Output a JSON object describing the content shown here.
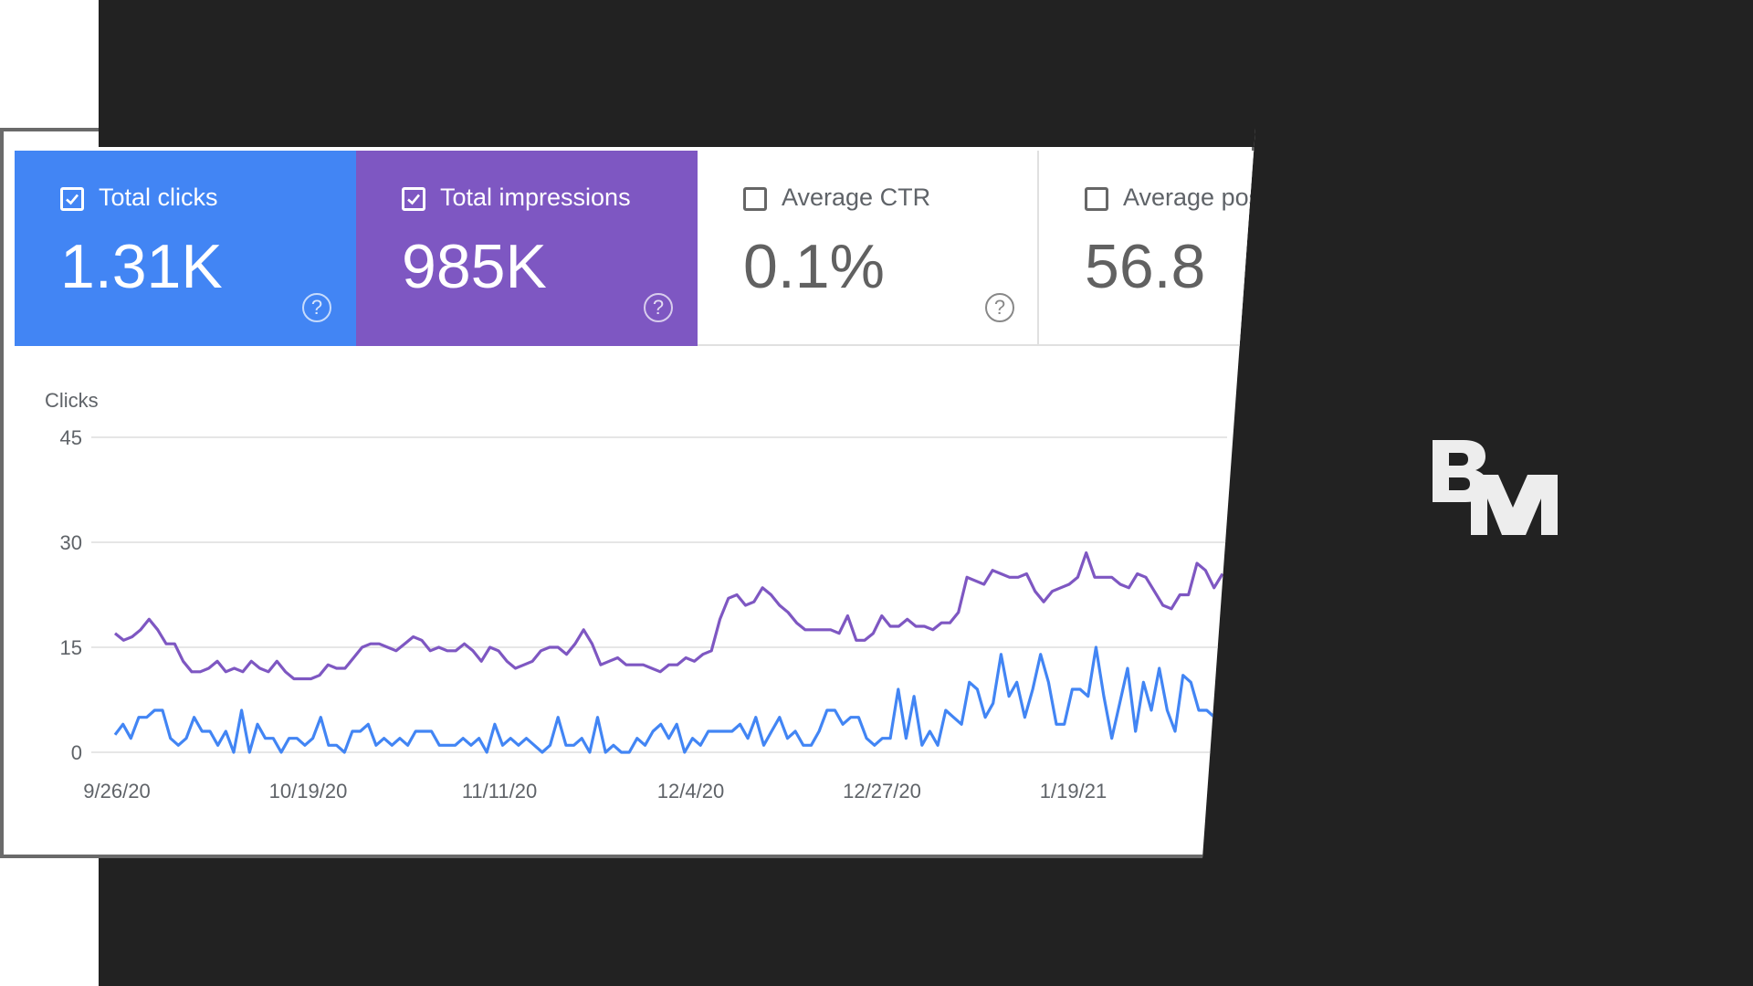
{
  "colors": {
    "dark_background": "#222222",
    "clicks_blue": "#4285f4",
    "impressions_purple": "#7e57c2",
    "logo_white": "#ededed"
  },
  "cards": [
    {
      "label": "Total clicks",
      "value": "1.31K",
      "checked": true,
      "help_icon": "help-circle-icon"
    },
    {
      "label": "Total impressions",
      "value": "985K",
      "checked": true,
      "help_icon": "help-circle-icon"
    },
    {
      "label": "Average CTR",
      "value": "0.1%",
      "checked": false,
      "help_icon": "help-circle-icon"
    },
    {
      "label": "Average pos",
      "value": "56.8",
      "checked": false
    }
  ],
  "help_glyph": "?",
  "logo": {
    "letters": "BM"
  },
  "chart_data": {
    "type": "line",
    "ylabel": "Clicks",
    "ylim": [
      0,
      45
    ],
    "yticks": [
      "45",
      "30",
      "15",
      "0"
    ],
    "xticks": [
      "9/26/20",
      "10/19/20",
      "11/11/20",
      "12/4/20",
      "12/27/20",
      "1/19/21"
    ],
    "x_start": "9/26/20",
    "x_end": "2/1/21",
    "grid": true,
    "series": [
      {
        "color": "#7e57c2",
        "values": [
          17,
          16,
          16.5,
          17.5,
          19,
          17.5,
          15.5,
          15.5,
          13,
          11.5,
          11.5,
          12,
          13,
          11.5,
          12,
          11.5,
          13,
          12,
          11.5,
          13,
          11.5,
          10.5,
          10.5,
          10.5,
          11,
          12.5,
          12,
          12,
          13.5,
          15,
          15.5,
          15.5,
          15,
          14.5,
          15.5,
          16.5,
          16,
          14.5,
          15,
          14.5,
          14.5,
          15.5,
          14.5,
          13,
          15,
          14.5,
          13,
          12,
          12.5,
          13,
          14.5,
          15,
          15,
          14,
          15.5,
          17.5,
          15.5,
          12.5,
          13,
          13.5,
          12.5,
          12.5,
          12.5,
          12,
          11.5,
          12.5,
          12.5,
          13.5,
          13,
          14,
          14.5,
          19,
          22,
          22.5,
          21,
          21.5,
          23.5,
          22.5,
          21,
          20,
          18.5,
          17.5,
          17.5,
          17.5,
          17.5,
          17,
          19.5,
          16,
          16,
          17,
          19.5,
          18,
          18,
          19,
          18,
          18,
          17.5,
          18.5,
          18.5,
          20,
          25,
          24.5,
          24,
          26,
          25.5,
          25,
          25,
          25.5,
          23,
          21.5,
          23,
          23.5,
          24,
          25,
          28.5,
          25,
          25,
          25,
          24,
          23.5,
          25.5,
          25,
          23,
          21,
          20.5,
          22.5,
          22.5,
          27,
          26,
          23.5,
          25.5
        ]
      },
      {
        "color": "#4285f4",
        "values": [
          2.5,
          4,
          2,
          5,
          5,
          6,
          6,
          2,
          1,
          2,
          5,
          3,
          3,
          1,
          3,
          0,
          6,
          0,
          4,
          2,
          2,
          0,
          2,
          2,
          1,
          2,
          5,
          1,
          1,
          0,
          3,
          3,
          4,
          1,
          2,
          1,
          2,
          1,
          3,
          3,
          3,
          1,
          1,
          1,
          2,
          1,
          2,
          0,
          4,
          1,
          2,
          1,
          2,
          1,
          0,
          1,
          5,
          1,
          1,
          2,
          0,
          5,
          0,
          1,
          0,
          0,
          2,
          1,
          3,
          4,
          2,
          4,
          0,
          2,
          1,
          3,
          3,
          3,
          3,
          4,
          2,
          5,
          1,
          3,
          5,
          2,
          3,
          1,
          1,
          3,
          6,
          6,
          4,
          5,
          5,
          2,
          1,
          2,
          2,
          9,
          2,
          8,
          1,
          3,
          1,
          6,
          5,
          4,
          10,
          9,
          5,
          7,
          14,
          8,
          10,
          5,
          9,
          14,
          10,
          4,
          4,
          9,
          9,
          8,
          15,
          8,
          2,
          7,
          12,
          3,
          10,
          6,
          12,
          6,
          3,
          11,
          10,
          6,
          6,
          5,
          5.5
        ]
      }
    ]
  }
}
